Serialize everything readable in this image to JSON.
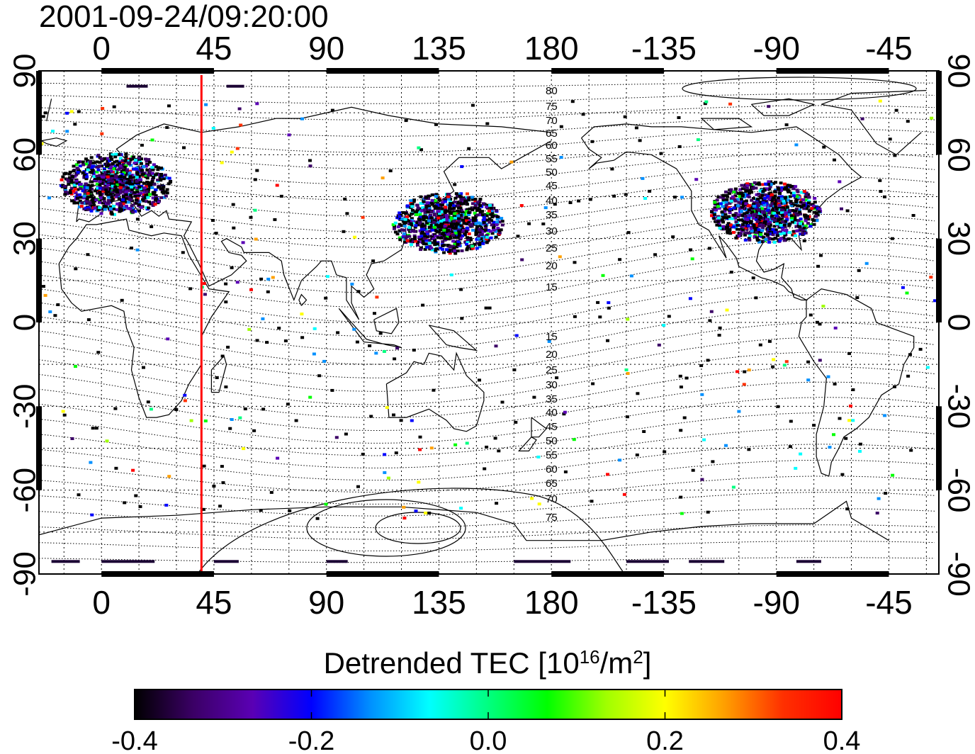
{
  "title": "2001-09-24/09:20:00",
  "map": {
    "lon_ticks_top": [
      "0",
      "45",
      "90",
      "135",
      "180",
      "-135",
      "-90",
      "-45"
    ],
    "lon_ticks_bottom": [
      "0",
      "45",
      "90",
      "135",
      "180",
      "-135",
      "-90",
      "-45"
    ],
    "lat_ticks_left": [
      "90",
      "60",
      "30",
      "0",
      "-30",
      "-60",
      "-90"
    ],
    "lat_ticks_right": [
      "90",
      "60",
      "30",
      "0",
      "-30",
      "-60",
      "-90"
    ],
    "grid": "dotted every 15 degrees",
    "terminator_longitude": 40,
    "terminator_color": "#ff0000",
    "contour_labels_north": [
      "80",
      "75",
      "70",
      "65",
      "60",
      "55",
      "50",
      "45",
      "40",
      "35",
      "30",
      "25",
      "20",
      "15"
    ],
    "contour_labels_south": [
      "15",
      "20",
      "25",
      "30",
      "35",
      "40",
      "45",
      "50",
      "55",
      "60",
      "65",
      "70",
      "75"
    ]
  },
  "colorbar": {
    "title_text": "Detrended TEC  [10",
    "title_sup1": "16",
    "title_mid": "/m",
    "title_sup2": "2",
    "title_end": "]",
    "tick_labels": [
      "-0.4",
      "-0.2",
      "0.0",
      "0.2",
      "0.4"
    ],
    "min": -0.4,
    "max": 0.4,
    "colormap": [
      "#000000",
      "#3b0066",
      "#5a00b4",
      "#0000ff",
      "#0090ff",
      "#00ffff",
      "#00ff80",
      "#00ff00",
      "#a0ff00",
      "#ffff00",
      "#ffa000",
      "#ff3000",
      "#ff0000"
    ]
  },
  "observation_clusters": [
    {
      "region": "Europe",
      "lon": 5,
      "lat": 50
    },
    {
      "region": "Japan",
      "lon": 138,
      "lat": 36
    },
    {
      "region": "North America",
      "lon": -95,
      "lat": 40
    }
  ]
}
